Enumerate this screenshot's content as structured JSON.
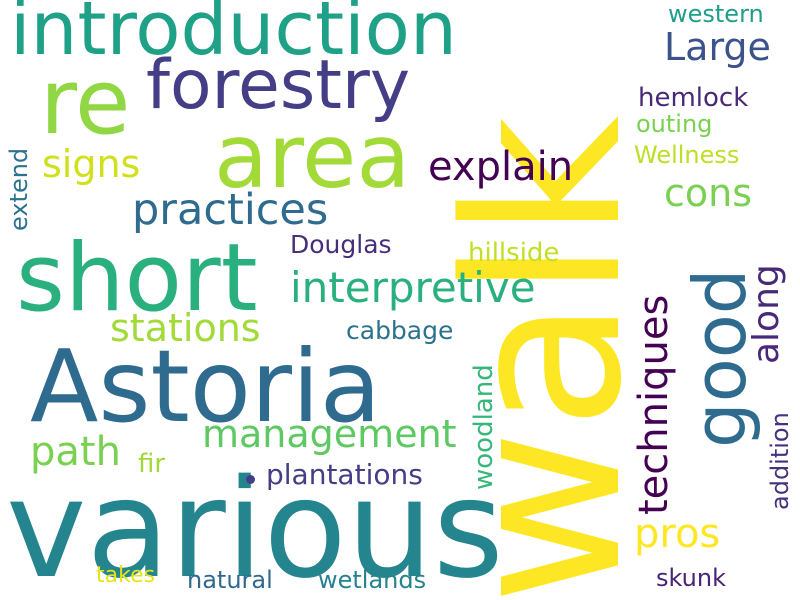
{
  "words": [
    {
      "key": "walk",
      "text": "walk",
      "color": "#fde725"
    },
    {
      "key": "various",
      "text": "various",
      "color": "#25858e"
    },
    {
      "key": "astoria",
      "text": "Astoria",
      "color": "#2e6b8e"
    },
    {
      "key": "area",
      "text": "area",
      "color": "#a2da37"
    },
    {
      "key": "short",
      "text": "short",
      "color": "#2ab07f"
    },
    {
      "key": "introduction",
      "text": "introduction",
      "color": "#1fa187"
    },
    {
      "key": "re",
      "text": "re",
      "color": "#90d743"
    },
    {
      "key": "forestry",
      "text": "forestry",
      "color": "#433e85"
    },
    {
      "key": "good",
      "text": "good",
      "color": "#2e6b8e"
    },
    {
      "key": "practices",
      "text": "practices",
      "color": "#2e6b8e"
    },
    {
      "key": "interpretive",
      "text": "interpretive",
      "color": "#2ab07f"
    },
    {
      "key": "management",
      "text": "management",
      "color": "#5ec962"
    },
    {
      "key": "stations",
      "text": "stations",
      "color": "#a2da37"
    },
    {
      "key": "techniques",
      "text": "techniques",
      "color": "#440154"
    },
    {
      "key": "explain",
      "text": "explain",
      "color": "#440154"
    },
    {
      "key": "signs",
      "text": "signs",
      "color": "#d0e11c"
    },
    {
      "key": "cons",
      "text": "cons",
      "color": "#7ad151"
    },
    {
      "key": "large",
      "text": "Large",
      "color": "#3b528b"
    },
    {
      "key": "along",
      "text": "along",
      "color": "#482878"
    },
    {
      "key": "path",
      "text": "path",
      "color": "#7ad151"
    },
    {
      "key": "pros",
      "text": "pros",
      "color": "#fde725"
    },
    {
      "key": "plantations",
      "text": "plantations",
      "color": "#433e85"
    },
    {
      "key": "woodland",
      "text": "woodland",
      "color": "#35b779"
    },
    {
      "key": "hemlock",
      "text": "hemlock",
      "color": "#482878"
    },
    {
      "key": "western",
      "text": "western",
      "color": "#1f9e89"
    },
    {
      "key": "outing",
      "text": "outing",
      "color": "#7ad151"
    },
    {
      "key": "wellness",
      "text": "Wellness",
      "color": "#bddf26"
    },
    {
      "key": "hillside",
      "text": "hillside",
      "color": "#c2df23"
    },
    {
      "key": "douglas",
      "text": "Douglas",
      "color": "#472d7b"
    },
    {
      "key": "cabbage",
      "text": "cabbage",
      "color": "#2c728e"
    },
    {
      "key": "extend",
      "text": "extend",
      "color": "#2c728e"
    },
    {
      "key": "fir",
      "text": "fir",
      "color": "#a0da39"
    },
    {
      "key": "natural",
      "text": "natural",
      "color": "#31688e"
    },
    {
      "key": "wetlands",
      "text": "wetlands",
      "color": "#26828e"
    },
    {
      "key": "takes",
      "text": "takes",
      "color": "#e5e419"
    },
    {
      "key": "skunk",
      "text": "skunk",
      "color": "#482475"
    },
    {
      "key": "addition",
      "text": "addition",
      "color": "#46327e"
    }
  ]
}
